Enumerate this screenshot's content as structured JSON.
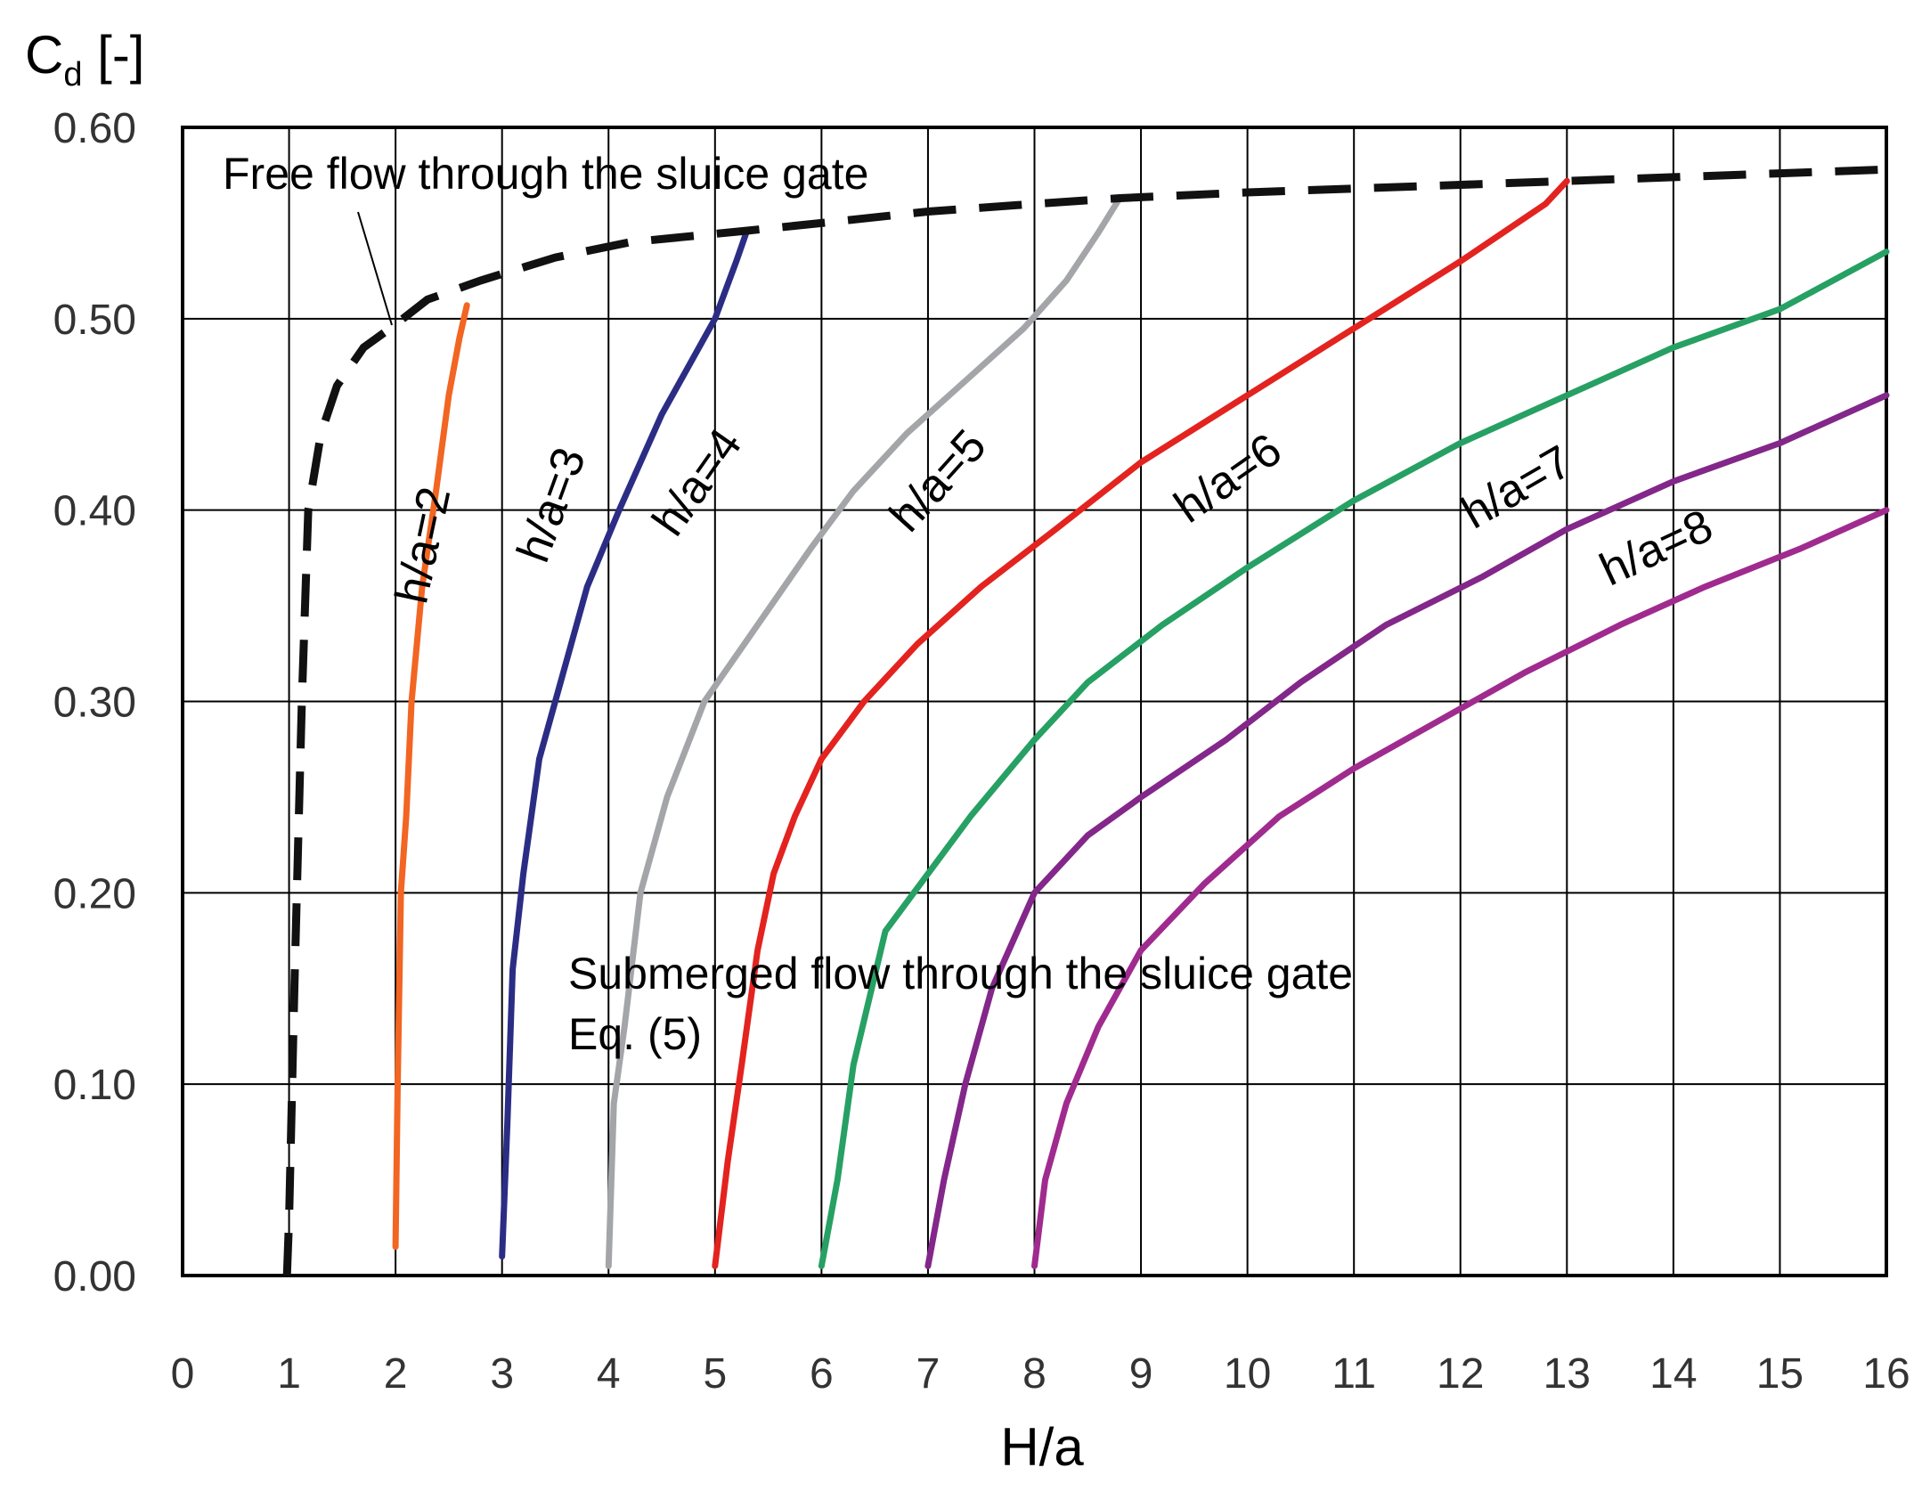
{
  "chart_data": {
    "type": "line",
    "ylabel": "C",
    "ylabel_sub": "d",
    "ylabel_unit": " [-]",
    "xlabel": "H/a",
    "xlim": [
      0,
      16
    ],
    "ylim": [
      0,
      0.6
    ],
    "grid": true,
    "x_ticks": [
      "0",
      "1",
      "2",
      "3",
      "4",
      "5",
      "6",
      "7",
      "8",
      "9",
      "10",
      "11",
      "12",
      "13",
      "14",
      "15",
      "16"
    ],
    "y_ticks": [
      "0.00",
      "0.10",
      "0.20",
      "0.30",
      "0.40",
      "0.50",
      "0.60"
    ],
    "annotations": {
      "free": "Free flow through the sluice gate",
      "submerged_1": "Submerged flow through the sluice gate",
      "submerged_2": "Eq. (5)"
    },
    "free_flow": {
      "color": "#111111",
      "points": [
        [
          0.98,
          0.0
        ],
        [
          1.0,
          0.03
        ],
        [
          1.05,
          0.15
        ],
        [
          1.12,
          0.3
        ],
        [
          1.18,
          0.4
        ],
        [
          1.3,
          0.44
        ],
        [
          1.45,
          0.465
        ],
        [
          1.7,
          0.485
        ],
        [
          2.0,
          0.497
        ],
        [
          2.3,
          0.51
        ],
        [
          2.8,
          0.52
        ],
        [
          3.5,
          0.532
        ],
        [
          4.2,
          0.54
        ],
        [
          5.3,
          0.546
        ],
        [
          6.0,
          0.55
        ],
        [
          7.0,
          0.556
        ],
        [
          8.0,
          0.56
        ],
        [
          8.8,
          0.563
        ],
        [
          10.0,
          0.566
        ],
        [
          11.0,
          0.568
        ],
        [
          12.0,
          0.57
        ],
        [
          13.0,
          0.572
        ],
        [
          14.0,
          0.574
        ],
        [
          15.0,
          0.576
        ],
        [
          16.0,
          0.578
        ]
      ]
    },
    "series": [
      {
        "label": "h/a=2",
        "color": "#F26522",
        "label_at": [
          2.4,
          0.38
        ],
        "label_angle": -78,
        "points": [
          [
            2.0,
            0.015
          ],
          [
            2.02,
            0.1
          ],
          [
            2.05,
            0.2
          ],
          [
            2.1,
            0.24
          ],
          [
            2.15,
            0.3
          ],
          [
            2.25,
            0.36
          ],
          [
            2.38,
            0.41
          ],
          [
            2.5,
            0.46
          ],
          [
            2.6,
            0.49
          ],
          [
            2.67,
            0.507
          ]
        ]
      },
      {
        "label": "h/a=3",
        "color": "#2B2D85",
        "label_at": [
          3.6,
          0.4
        ],
        "label_angle": -70,
        "points": [
          [
            3.0,
            0.01
          ],
          [
            3.05,
            0.08
          ],
          [
            3.1,
            0.16
          ],
          [
            3.2,
            0.21
          ],
          [
            3.35,
            0.27
          ],
          [
            3.55,
            0.31
          ],
          [
            3.8,
            0.36
          ],
          [
            4.1,
            0.4
          ],
          [
            4.5,
            0.45
          ],
          [
            4.8,
            0.48
          ],
          [
            5.0,
            0.5
          ],
          [
            5.2,
            0.53
          ],
          [
            5.3,
            0.546
          ]
        ]
      },
      {
        "label": "h/a=4",
        "color": "#A3A5A8",
        "label_at": [
          4.95,
          0.41
        ],
        "label_angle": -55,
        "points": [
          [
            4.0,
            0.005
          ],
          [
            4.05,
            0.09
          ],
          [
            4.15,
            0.13
          ],
          [
            4.3,
            0.2
          ],
          [
            4.55,
            0.25
          ],
          [
            4.9,
            0.3
          ],
          [
            5.4,
            0.34
          ],
          [
            5.9,
            0.38
          ],
          [
            6.3,
            0.41
          ],
          [
            6.8,
            0.44
          ],
          [
            7.4,
            0.47
          ],
          [
            7.9,
            0.495
          ],
          [
            8.3,
            0.52
          ],
          [
            8.6,
            0.545
          ],
          [
            8.8,
            0.563
          ]
        ]
      },
      {
        "label": "h/a=5",
        "color": "#E3231F",
        "label_at": [
          7.2,
          0.41
        ],
        "label_angle": -48,
        "points": [
          [
            5.0,
            0.005
          ],
          [
            5.12,
            0.06
          ],
          [
            5.25,
            0.11
          ],
          [
            5.4,
            0.17
          ],
          [
            5.55,
            0.21
          ],
          [
            5.75,
            0.24
          ],
          [
            6.0,
            0.27
          ],
          [
            6.4,
            0.3
          ],
          [
            6.9,
            0.33
          ],
          [
            7.5,
            0.36
          ],
          [
            8.2,
            0.39
          ],
          [
            9.0,
            0.425
          ],
          [
            10.0,
            0.46
          ],
          [
            11.0,
            0.495
          ],
          [
            12.0,
            0.53
          ],
          [
            12.8,
            0.56
          ],
          [
            13.0,
            0.572
          ]
        ]
      },
      {
        "label": "h/a=6",
        "color": "#27A064",
        "label_at": [
          9.9,
          0.41
        ],
        "label_angle": -35,
        "points": [
          [
            6.0,
            0.005
          ],
          [
            6.15,
            0.05
          ],
          [
            6.3,
            0.11
          ],
          [
            6.6,
            0.18
          ],
          [
            7.0,
            0.21
          ],
          [
            7.4,
            0.24
          ],
          [
            8.0,
            0.28
          ],
          [
            8.5,
            0.31
          ],
          [
            9.2,
            0.34
          ],
          [
            10.0,
            0.37
          ],
          [
            11.0,
            0.405
          ],
          [
            12.0,
            0.435
          ],
          [
            13.0,
            0.46
          ],
          [
            14.0,
            0.485
          ],
          [
            15.0,
            0.505
          ],
          [
            16.0,
            0.535
          ]
        ]
      },
      {
        "label": "h/a=7",
        "color": "#83278A",
        "label_at": [
          12.6,
          0.405
        ],
        "label_angle": -30,
        "points": [
          [
            7.0,
            0.005
          ],
          [
            7.15,
            0.05
          ],
          [
            7.35,
            0.1
          ],
          [
            7.6,
            0.15
          ],
          [
            8.0,
            0.2
          ],
          [
            8.5,
            0.23
          ],
          [
            9.0,
            0.25
          ],
          [
            9.8,
            0.28
          ],
          [
            10.5,
            0.31
          ],
          [
            11.3,
            0.34
          ],
          [
            12.2,
            0.365
          ],
          [
            13.0,
            0.39
          ],
          [
            14.0,
            0.415
          ],
          [
            15.0,
            0.435
          ],
          [
            16.0,
            0.46
          ]
        ]
      },
      {
        "label": "h/a=8",
        "color": "#A02B8F",
        "label_at": [
          13.9,
          0.373
        ],
        "label_angle": -25,
        "points": [
          [
            8.0,
            0.005
          ],
          [
            8.1,
            0.05
          ],
          [
            8.3,
            0.09
          ],
          [
            8.6,
            0.13
          ],
          [
            9.0,
            0.17
          ],
          [
            9.6,
            0.205
          ],
          [
            10.3,
            0.24
          ],
          [
            11.0,
            0.265
          ],
          [
            11.8,
            0.29
          ],
          [
            12.6,
            0.315
          ],
          [
            13.5,
            0.34
          ],
          [
            14.3,
            0.36
          ],
          [
            15.2,
            0.38
          ],
          [
            16.0,
            0.4
          ]
        ]
      }
    ]
  }
}
